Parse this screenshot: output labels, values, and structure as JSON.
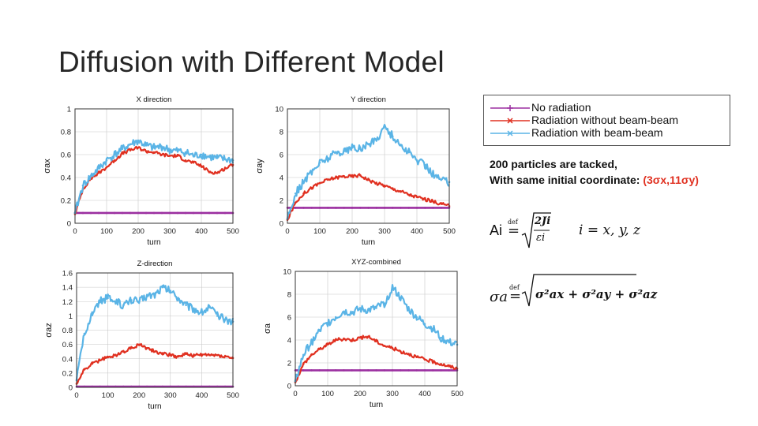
{
  "slide": {
    "title": "Diffusion with Different Model"
  },
  "legend": {
    "items": [
      {
        "label": "No radiation",
        "color": "#9b2fa0",
        "marker": "+"
      },
      {
        "label": "Radiation without beam-beam",
        "color": "#e03020",
        "marker": "x"
      },
      {
        "label": "Radiation with beam-beam",
        "color": "#5ab4e6",
        "marker": "x"
      }
    ]
  },
  "notes": {
    "line1": "200 particles are tacked,",
    "line2_prefix": "With same initial coordinate:",
    "line2_value": "(3σx,11σy)"
  },
  "formulas": {
    "ai_lhs": "Ai",
    "def": "def",
    "ai_num": "2Ji",
    "ai_den": "εi",
    "index": "i = x, y, z",
    "sigma_lhs": "σa",
    "sigma_rhs": "σ²ax + σ²ay + σ²az"
  },
  "chart_data": [
    {
      "id": "x",
      "type": "line",
      "title": "X direction",
      "xlabel": "turn",
      "ylabel": "σax",
      "xlim": [
        0,
        500
      ],
      "ylim": [
        0,
        1
      ],
      "xticks": [
        "0",
        "100",
        "200",
        "300",
        "400",
        "500"
      ],
      "yticks": [
        "0",
        "0.2",
        "0.4",
        "0.6",
        "0.8",
        "1"
      ],
      "x": [
        0,
        25,
        50,
        75,
        100,
        125,
        150,
        175,
        200,
        225,
        250,
        275,
        300,
        325,
        350,
        375,
        400,
        425,
        450,
        475,
        500
      ],
      "series": [
        {
          "name": "No radiation",
          "values": [
            0.09,
            0.09,
            0.09,
            0.09,
            0.09,
            0.09,
            0.09,
            0.09,
            0.09,
            0.09,
            0.09,
            0.09,
            0.09,
            0.09,
            0.09,
            0.09,
            0.09,
            0.09,
            0.09,
            0.09,
            0.09
          ]
        },
        {
          "name": "Radiation without beam-beam",
          "values": [
            0.08,
            0.3,
            0.39,
            0.44,
            0.49,
            0.55,
            0.61,
            0.64,
            0.66,
            0.63,
            0.62,
            0.6,
            0.59,
            0.59,
            0.55,
            0.53,
            0.5,
            0.45,
            0.44,
            0.48,
            0.51
          ]
        },
        {
          "name": "Radiation with beam-beam",
          "values": [
            0.09,
            0.33,
            0.41,
            0.48,
            0.55,
            0.6,
            0.65,
            0.69,
            0.72,
            0.68,
            0.66,
            0.67,
            0.64,
            0.63,
            0.62,
            0.59,
            0.6,
            0.58,
            0.57,
            0.56,
            0.55
          ]
        }
      ]
    },
    {
      "id": "y",
      "type": "line",
      "title": "Y direction",
      "xlabel": "turn",
      "ylabel": "σay",
      "xlim": [
        0,
        500
      ],
      "ylim": [
        0,
        10
      ],
      "xticks": [
        "0",
        "100",
        "200",
        "300",
        "400",
        "500"
      ],
      "yticks": [
        "0",
        "2",
        "4",
        "6",
        "8",
        "10"
      ],
      "x": [
        0,
        25,
        50,
        75,
        100,
        125,
        150,
        175,
        200,
        225,
        250,
        275,
        300,
        325,
        350,
        375,
        400,
        425,
        450,
        475,
        500
      ],
      "series": [
        {
          "name": "No radiation",
          "values": [
            1.35,
            1.35,
            1.35,
            1.35,
            1.35,
            1.35,
            1.35,
            1.35,
            1.35,
            1.35,
            1.35,
            1.35,
            1.35,
            1.35,
            1.35,
            1.35,
            1.35,
            1.35,
            1.35,
            1.35,
            1.35
          ]
        },
        {
          "name": "Radiation without beam-beam",
          "values": [
            0.3,
            1.8,
            2.6,
            3.1,
            3.5,
            3.8,
            4.0,
            4.1,
            4.1,
            4.2,
            3.8,
            3.5,
            3.3,
            3.0,
            2.8,
            2.5,
            2.3,
            2.1,
            1.9,
            1.7,
            1.5
          ]
        },
        {
          "name": "Radiation with beam-beam",
          "values": [
            0.4,
            2.6,
            3.6,
            4.5,
            5.3,
            5.7,
            6.2,
            6.3,
            6.6,
            6.5,
            6.9,
            7.3,
            8.5,
            7.6,
            6.8,
            6.2,
            5.5,
            5.1,
            4.3,
            3.8,
            3.6
          ]
        }
      ]
    },
    {
      "id": "z",
      "type": "line",
      "title": "Z-direction",
      "xlabel": "turn",
      "ylabel": "σaz",
      "xlim": [
        0,
        500
      ],
      "ylim": [
        0,
        1.6
      ],
      "xticks": [
        "0",
        "100",
        "200",
        "300",
        "400",
        "500"
      ],
      "yticks": [
        "0",
        "0.2",
        "0.4",
        "0.6",
        "0.8",
        "1",
        "1.2",
        "1.4",
        "1.6"
      ],
      "x": [
        0,
        25,
        50,
        75,
        100,
        125,
        150,
        175,
        200,
        225,
        250,
        275,
        300,
        325,
        350,
        375,
        400,
        425,
        450,
        475,
        500
      ],
      "series": [
        {
          "name": "No radiation",
          "values": [
            0.01,
            0.01,
            0.01,
            0.01,
            0.01,
            0.01,
            0.01,
            0.01,
            0.01,
            0.01,
            0.01,
            0.01,
            0.01,
            0.01,
            0.01,
            0.01,
            0.01,
            0.01,
            0.01,
            0.01,
            0.01
          ]
        },
        {
          "name": "Radiation without beam-beam",
          "values": [
            0.05,
            0.25,
            0.33,
            0.38,
            0.42,
            0.45,
            0.5,
            0.55,
            0.6,
            0.55,
            0.5,
            0.48,
            0.45,
            0.43,
            0.47,
            0.44,
            0.46,
            0.45,
            0.45,
            0.43,
            0.41
          ]
        },
        {
          "name": "Radiation with beam-beam",
          "values": [
            0.1,
            0.75,
            1.05,
            1.2,
            1.25,
            1.2,
            1.15,
            1.22,
            1.2,
            1.28,
            1.3,
            1.4,
            1.35,
            1.25,
            1.15,
            1.1,
            1.05,
            1.12,
            1.0,
            0.95,
            0.92
          ]
        }
      ]
    },
    {
      "id": "xyz",
      "type": "line",
      "title": "XYZ-combined",
      "xlabel": "turn",
      "ylabel": "σa",
      "xlim": [
        0,
        500
      ],
      "ylim": [
        0,
        10
      ],
      "xticks": [
        "0",
        "100",
        "200",
        "300",
        "400",
        "500"
      ],
      "yticks": [
        "0",
        "2",
        "4",
        "6",
        "8",
        "10"
      ],
      "x": [
        0,
        25,
        50,
        75,
        100,
        125,
        150,
        175,
        200,
        225,
        250,
        275,
        300,
        325,
        350,
        375,
        400,
        425,
        450,
        475,
        500
      ],
      "series": [
        {
          "name": "No radiation",
          "values": [
            1.35,
            1.35,
            1.35,
            1.35,
            1.35,
            1.35,
            1.35,
            1.35,
            1.35,
            1.35,
            1.35,
            1.35,
            1.35,
            1.35,
            1.35,
            1.35,
            1.35,
            1.35,
            1.35,
            1.35,
            1.35
          ]
        },
        {
          "name": "Radiation without beam-beam",
          "values": [
            0.3,
            1.9,
            2.7,
            3.2,
            3.6,
            4.0,
            4.1,
            4.0,
            4.2,
            4.3,
            3.9,
            3.5,
            3.3,
            3.0,
            2.8,
            2.5,
            2.3,
            2.1,
            1.9,
            1.7,
            1.5
          ]
        },
        {
          "name": "Radiation with beam-beam",
          "values": [
            0.4,
            2.7,
            3.8,
            4.8,
            5.5,
            6.0,
            6.5,
            6.4,
            6.7,
            6.6,
            6.8,
            7.2,
            8.6,
            7.7,
            6.7,
            6.0,
            5.4,
            5.0,
            4.2,
            3.8,
            3.6
          ]
        }
      ]
    }
  ]
}
